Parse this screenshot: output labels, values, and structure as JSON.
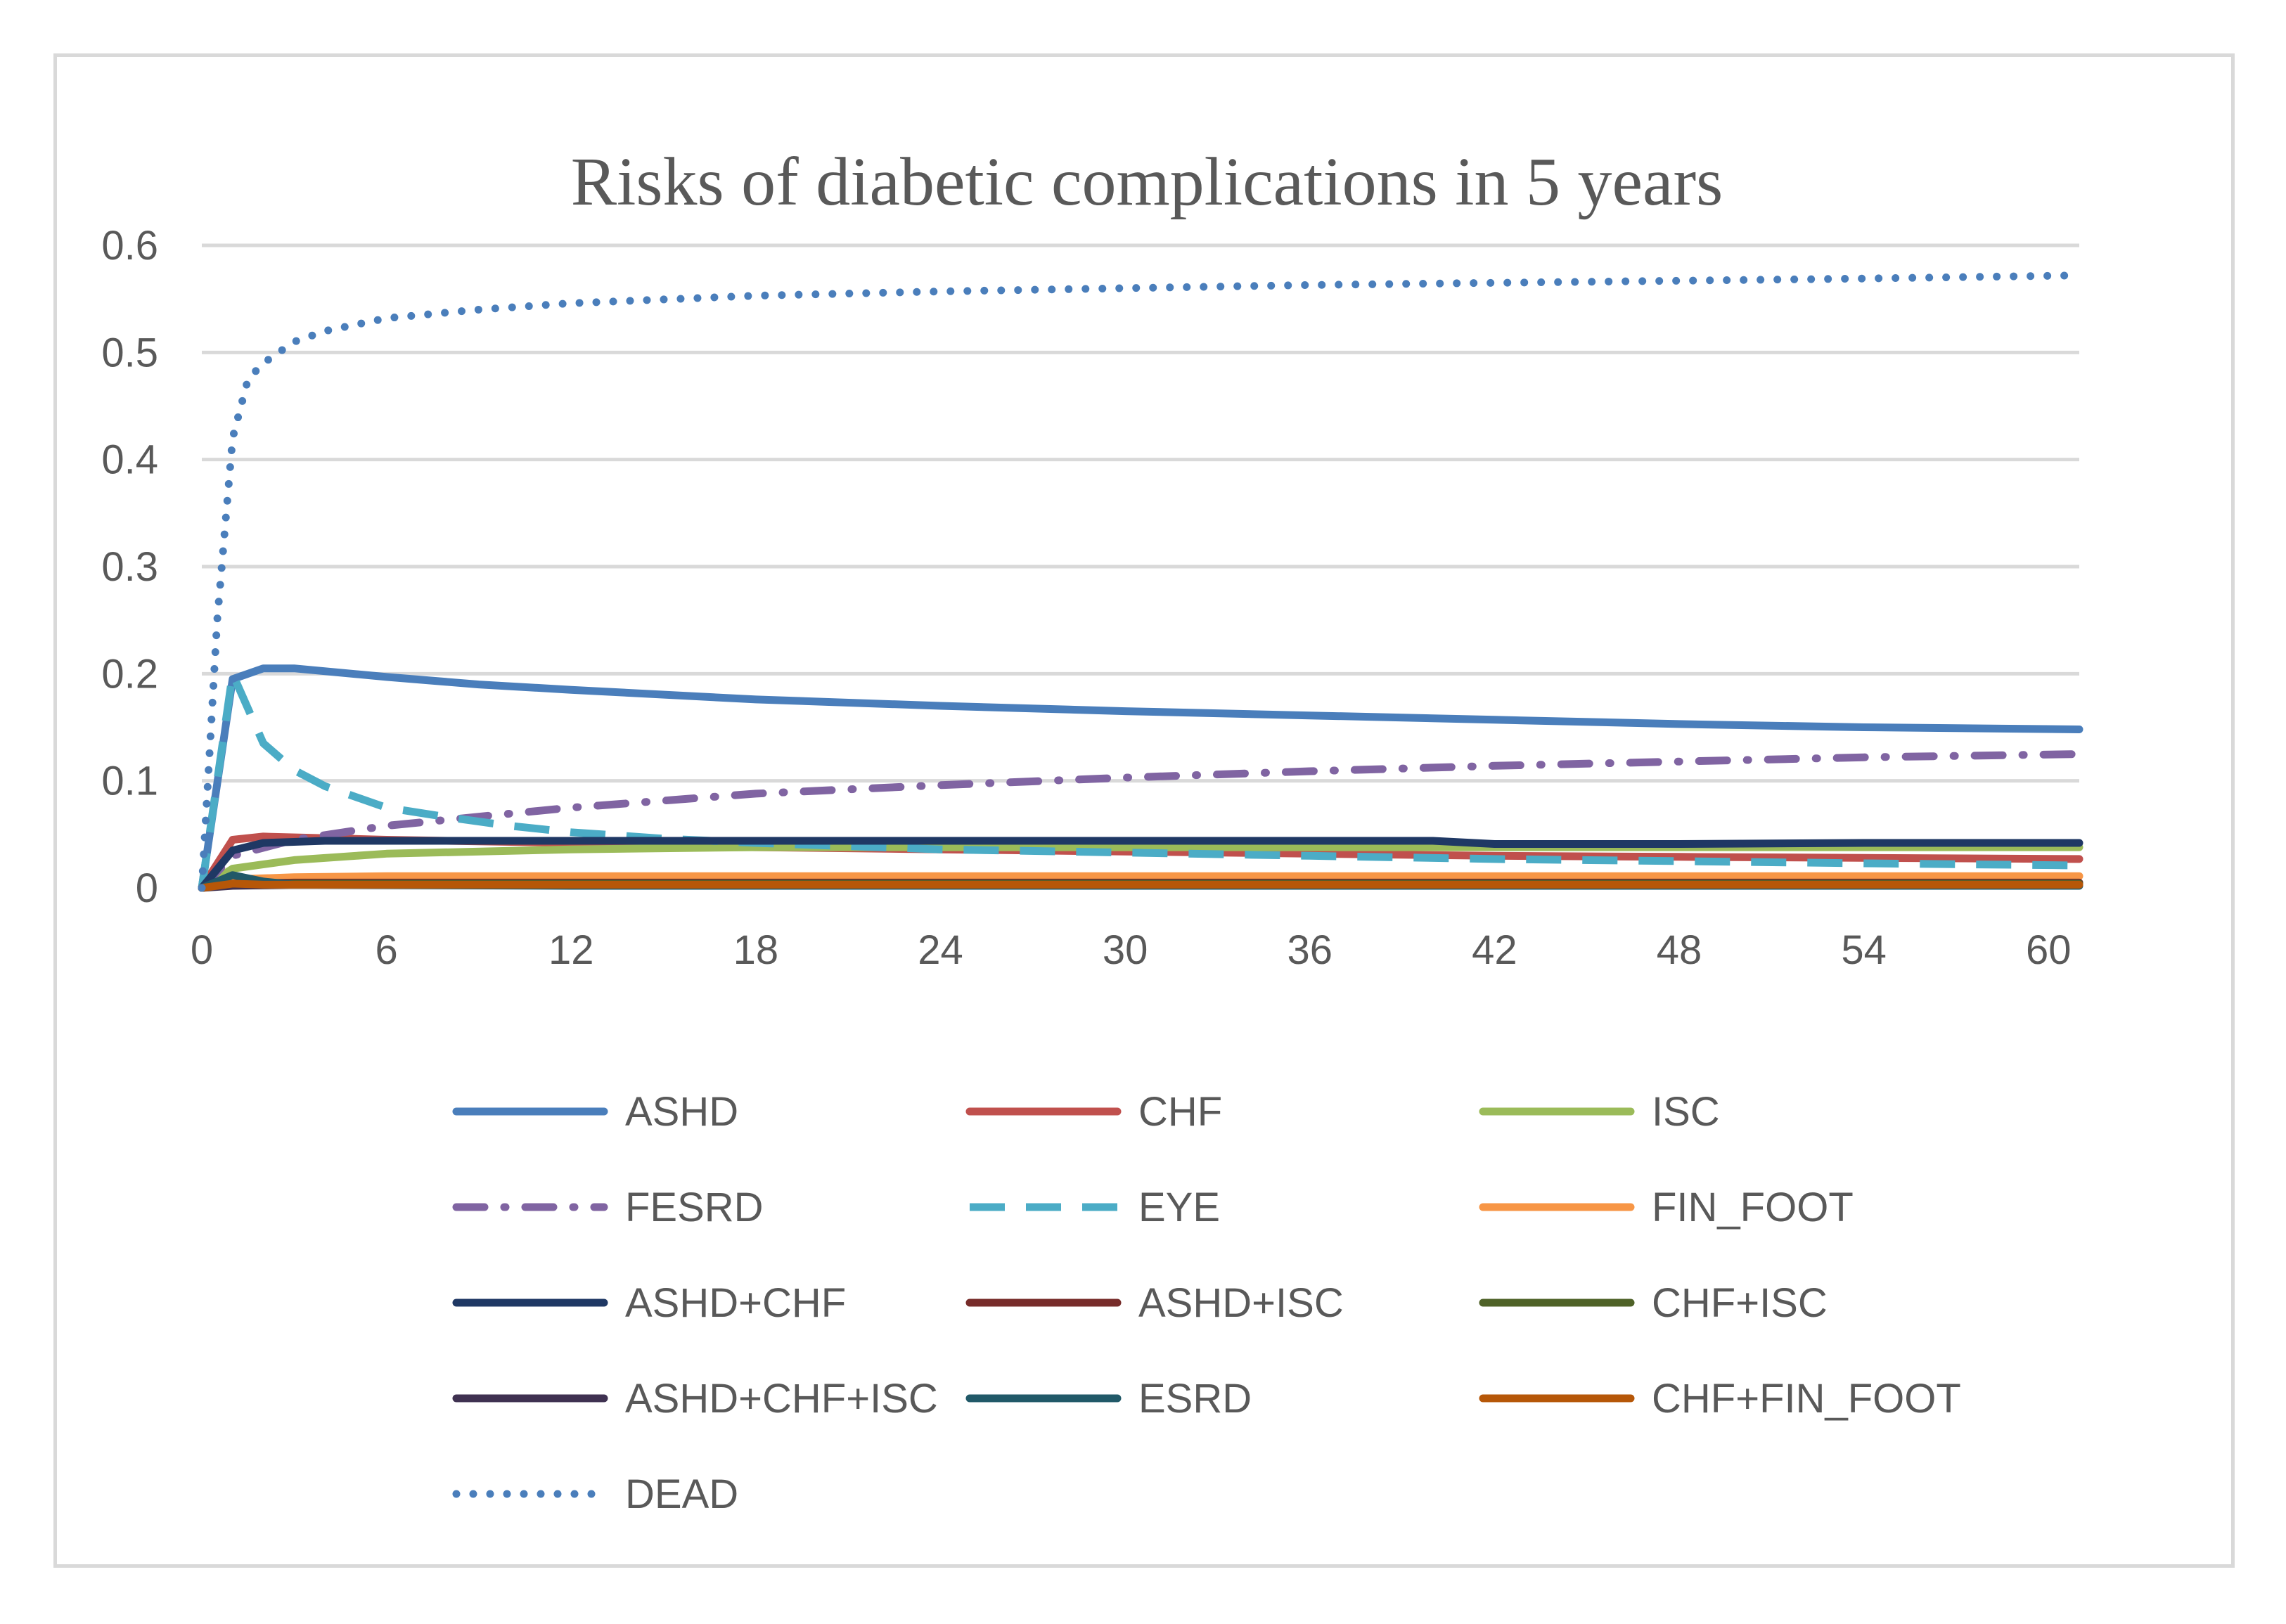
{
  "chart_data": {
    "type": "line",
    "title": "Risks of diabetic complications in 5 years",
    "xlabel": "",
    "ylabel": "",
    "xlim": [
      0,
      61
    ],
    "ylim": [
      0,
      0.6
    ],
    "xticks": [
      0,
      6,
      12,
      18,
      24,
      30,
      36,
      42,
      48,
      54,
      60
    ],
    "yticks": [
      0,
      0.1,
      0.2,
      0.3,
      0.4,
      0.5,
      0.6
    ],
    "ytick_labels": [
      "0",
      "0.1",
      "0.2",
      "0.3",
      "0.4",
      "0.5",
      "0.6"
    ],
    "grid": true,
    "legend_position": "bottom",
    "series": [
      {
        "name": "ASHD",
        "color": "#4a7ebb",
        "dash": "solid",
        "x": [
          0,
          1,
          2,
          3,
          6,
          9,
          12,
          18,
          24,
          30,
          36,
          42,
          48,
          54,
          61
        ],
        "y": [
          0,
          0.195,
          0.205,
          0.205,
          0.197,
          0.19,
          0.185,
          0.176,
          0.17,
          0.165,
          0.161,
          0.157,
          0.153,
          0.15,
          0.148
        ]
      },
      {
        "name": "CHF",
        "color": "#c0504d",
        "dash": "solid",
        "x": [
          0,
          1,
          2,
          6,
          12,
          18,
          24,
          30,
          36,
          42,
          48,
          54,
          61
        ],
        "y": [
          0,
          0.045,
          0.048,
          0.045,
          0.042,
          0.038,
          0.036,
          0.034,
          0.032,
          0.03,
          0.029,
          0.028,
          0.027
        ]
      },
      {
        "name": "ISC",
        "color": "#9bbb59",
        "dash": "solid",
        "x": [
          0,
          1,
          3,
          6,
          12,
          18,
          24,
          30,
          36,
          42,
          48,
          54,
          61
        ],
        "y": [
          0,
          0.018,
          0.026,
          0.032,
          0.036,
          0.038,
          0.038,
          0.038,
          0.038,
          0.038,
          0.038,
          0.038,
          0.038
        ]
      },
      {
        "name": "FESRD",
        "color": "#8064a2",
        "dash": "dashdot",
        "x": [
          0,
          1,
          3,
          6,
          12,
          18,
          24,
          30,
          36,
          42,
          48,
          54,
          61
        ],
        "y": [
          0,
          0.03,
          0.045,
          0.058,
          0.075,
          0.088,
          0.096,
          0.103,
          0.109,
          0.114,
          0.118,
          0.122,
          0.125
        ]
      },
      {
        "name": "EYE",
        "color": "#4bacc6",
        "dash": "dash",
        "x": [
          0,
          1,
          2,
          3,
          4,
          6,
          8,
          10,
          12,
          15,
          18,
          24,
          30,
          36,
          42,
          48,
          54,
          61
        ],
        "y": [
          0,
          0.2,
          0.135,
          0.11,
          0.095,
          0.075,
          0.066,
          0.058,
          0.052,
          0.046,
          0.042,
          0.036,
          0.033,
          0.03,
          0.027,
          0.025,
          0.023,
          0.021
        ]
      },
      {
        "name": "FIN_FOOT",
        "color": "#f79646",
        "dash": "solid",
        "x": [
          0,
          1,
          3,
          6,
          12,
          24,
          36,
          48,
          61
        ],
        "y": [
          0,
          0.008,
          0.01,
          0.011,
          0.011,
          0.011,
          0.011,
          0.011,
          0.011
        ]
      },
      {
        "name": "ASHD+CHF",
        "color": "#1f3864",
        "dash": "solid",
        "x": [
          0,
          1,
          2,
          4,
          12,
          24,
          36,
          40,
          42,
          48,
          54,
          61
        ],
        "y": [
          0,
          0.035,
          0.042,
          0.044,
          0.044,
          0.044,
          0.044,
          0.044,
          0.041,
          0.041,
          0.042,
          0.042
        ]
      },
      {
        "name": "ASHD+ISC",
        "color": "#772c2a",
        "dash": "solid",
        "x": [
          0,
          1,
          3,
          12,
          24,
          36,
          48,
          61
        ],
        "y": [
          0,
          0.004,
          0.005,
          0.005,
          0.005,
          0.005,
          0.005,
          0.005
        ]
      },
      {
        "name": "CHF+ISC",
        "color": "#4f6228",
        "dash": "solid",
        "x": [
          0,
          1,
          3,
          12,
          24,
          36,
          48,
          61
        ],
        "y": [
          0,
          0.003,
          0.004,
          0.004,
          0.004,
          0.004,
          0.004,
          0.004
        ]
      },
      {
        "name": "ASHD+CHF+ISC",
        "color": "#3f3151",
        "dash": "solid",
        "x": [
          0,
          1,
          3,
          12,
          24,
          36,
          48,
          61
        ],
        "y": [
          0,
          0.002,
          0.003,
          0.003,
          0.003,
          0.003,
          0.003,
          0.003
        ]
      },
      {
        "name": "ESRD",
        "color": "#215968",
        "dash": "solid",
        "x": [
          0,
          1,
          2,
          3,
          12,
          24,
          36,
          48,
          61
        ],
        "y": [
          0,
          0.012,
          0.006,
          0.003,
          0.002,
          0.002,
          0.002,
          0.002,
          0.002
        ]
      },
      {
        "name": "CHF+FIN_FOOT",
        "color": "#b65708",
        "dash": "solid",
        "x": [
          0,
          1,
          2,
          12,
          24,
          36,
          48,
          61
        ],
        "y": [
          0,
          0.004,
          0.003,
          0.003,
          0.003,
          0.003,
          0.003,
          0.003
        ]
      },
      {
        "name": "DEAD",
        "color": "#4a7ebb",
        "dash": "dot",
        "x": [
          0,
          0.5,
          1,
          1.5,
          2,
          3,
          4,
          6,
          9,
          12,
          18,
          24,
          30,
          36,
          42,
          48,
          54,
          61
        ],
        "y": [
          0,
          0.25,
          0.42,
          0.475,
          0.49,
          0.51,
          0.52,
          0.532,
          0.54,
          0.546,
          0.553,
          0.557,
          0.56,
          0.563,
          0.565,
          0.567,
          0.569,
          0.572
        ]
      }
    ]
  }
}
